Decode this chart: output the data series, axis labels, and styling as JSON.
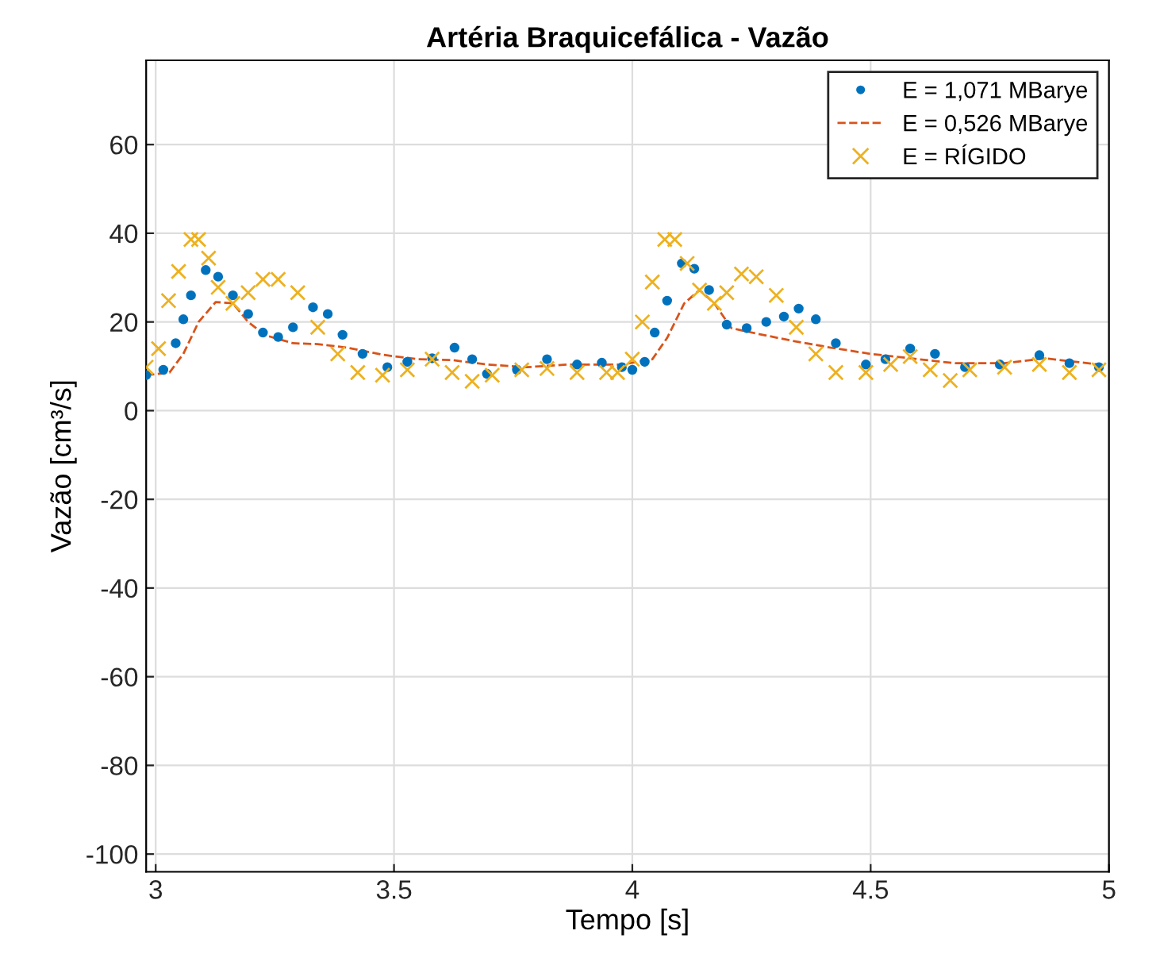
{
  "chart_data": {
    "type": "scatter",
    "title": "Artéria Braquicefálica - Vazão",
    "xlabel": "Tempo [s]",
    "ylabel": "Vazão [cm³/s]",
    "xlim": [
      2.98,
      5.0
    ],
    "xticks": [
      3,
      3.5,
      4,
      4.5,
      5
    ],
    "ylim": [
      -104,
      79
    ],
    "yticks": [
      -100,
      -80,
      -60,
      -40,
      -20,
      0,
      20,
      40,
      60
    ],
    "grid": true,
    "legend": "top right",
    "series": [
      {
        "name": "E = 1,071 MBarye",
        "marker": "circle",
        "color": "#0072bd",
        "x": [
          2.98,
          3.016,
          3.042,
          3.058,
          3.074,
          3.105,
          3.131,
          3.162,
          3.194,
          3.225,
          3.257,
          3.288,
          3.33,
          3.361,
          3.392,
          3.434,
          3.486,
          3.528,
          3.58,
          3.627,
          3.664,
          3.695,
          3.758,
          3.821,
          3.884,
          3.936,
          3.978,
          4.0,
          4.026,
          4.047,
          4.073,
          4.104,
          4.13,
          4.161,
          4.198,
          4.24,
          4.281,
          4.318,
          4.349,
          4.385,
          4.427,
          4.49,
          4.531,
          4.583,
          4.635,
          4.698,
          4.771,
          4.854,
          4.917,
          4.979
        ],
        "values": [
          8.0,
          9.2,
          15.2,
          20.6,
          26,
          31.7,
          30.2,
          26,
          21.8,
          17.6,
          16.6,
          18.8,
          23.3,
          21.8,
          17.1,
          12.8,
          9.8,
          11,
          11.8,
          14.2,
          11.6,
          8.3,
          9.2,
          11.6,
          10.4,
          10.8,
          9.8,
          9.2,
          11,
          17.6,
          24.8,
          33.2,
          32,
          27.2,
          19.4,
          18.6,
          20,
          21.2,
          23,
          20.6,
          15.2,
          10.4,
          11.6,
          14,
          12.8,
          9.8,
          10.4,
          12.5,
          10.7,
          9.8
        ]
      },
      {
        "name": "E = 0,526 MBarye",
        "type": "line",
        "line_style": "dashed",
        "color": "#d95319",
        "x": [
          2.98,
          3.029,
          3.058,
          3.09,
          3.126,
          3.162,
          3.194,
          3.23,
          3.288,
          3.34,
          3.403,
          3.476,
          3.549,
          3.622,
          3.695,
          3.779,
          3.863,
          3.946,
          3.979,
          4.042,
          4.073,
          4.109,
          4.141,
          4.172,
          4.208,
          4.26,
          4.333,
          4.417,
          4.5,
          4.583,
          4.677,
          4.781,
          4.865,
          4.979
        ],
        "values": [
          8,
          8.6,
          12.8,
          20,
          24.5,
          24.2,
          20,
          17,
          15.2,
          15,
          14.2,
          12.6,
          11.6,
          11.4,
          10.4,
          9.8,
          10.4,
          10.4,
          10.4,
          11.6,
          16.4,
          24.2,
          27.2,
          24.2,
          18.6,
          17.4,
          15.8,
          14.2,
          12.8,
          11.8,
          10.7,
          10.7,
          11.8,
          10.4
        ]
      },
      {
        "name": "E = RÍGIDO",
        "marker": "cross",
        "color": "#edb120",
        "x": [
          2.98,
          3.006,
          3.027,
          3.048,
          3.074,
          3.09,
          3.111,
          3.131,
          3.162,
          3.194,
          3.225,
          3.257,
          3.298,
          3.34,
          3.382,
          3.424,
          3.476,
          3.528,
          3.58,
          3.622,
          3.664,
          3.706,
          3.768,
          3.821,
          3.884,
          3.946,
          3.969,
          4.0,
          4.021,
          4.042,
          4.068,
          4.089,
          4.115,
          4.141,
          4.172,
          4.198,
          4.229,
          4.26,
          4.302,
          4.344,
          4.385,
          4.427,
          4.49,
          4.542,
          4.583,
          4.625,
          4.667,
          4.708,
          4.781,
          4.854,
          4.917,
          4.979
        ],
        "values": [
          9.8,
          14,
          24.8,
          31.4,
          38.6,
          38.6,
          34.4,
          27.8,
          24.2,
          26.6,
          29.6,
          29.6,
          26.6,
          18.8,
          12.8,
          8.6,
          8,
          9.2,
          11.6,
          8.6,
          6.6,
          8,
          9.2,
          9.5,
          8.6,
          8.6,
          8.6,
          11.6,
          20,
          29,
          38.6,
          38.6,
          33.2,
          27.2,
          24.2,
          26.6,
          30.8,
          30.2,
          26,
          18.8,
          12.8,
          8.6,
          8.6,
          10.4,
          12.2,
          9.2,
          6.8,
          9.2,
          9.8,
          10.4,
          8.6,
          9.2
        ]
      }
    ]
  }
}
